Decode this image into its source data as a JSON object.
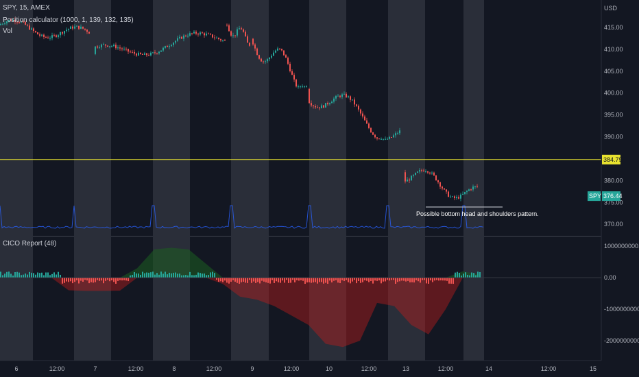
{
  "legend": {
    "symbol": "SPY, 15, AMEX",
    "indicator_1": "Position calculator (1000, 1, 139, 132, 135)",
    "indicator_2": "Vol",
    "indicator_3": "CICO Report (48)"
  },
  "currency": "USD",
  "annotation": "Possible bottom head and shoulders pattern.",
  "colors": {
    "background": "#131722",
    "session_shade": "#2a2e39",
    "up": "#26a69a",
    "down": "#ef5350",
    "hline": "#e8e230",
    "volume": "#2962ff",
    "cico_up": "#1b5e20",
    "cico_down": "#b71c1c"
  },
  "chart_data": [
    {
      "type": "candlestick",
      "title": "SPY, 15, AMEX",
      "ylabel": "USD",
      "ylim": [
        368,
        420
      ],
      "y_ticks": [
        "415.00",
        "410.00",
        "405.00",
        "400.00",
        "395.00",
        "390.00",
        "380.00",
        "375.00",
        "370.00"
      ],
      "horizontal_line": {
        "value": 384.79,
        "label": "384.79"
      },
      "last_price": {
        "symbol": "SPY",
        "value": 376.44,
        "label": "376.44"
      },
      "x_ticks": [
        "6",
        "12:00",
        "7",
        "12:00",
        "8",
        "12:00",
        "9",
        "12:00",
        "10",
        "12:00",
        "13",
        "12:00",
        "14",
        "12:00",
        "15"
      ],
      "sessions": [
        {
          "label": "6",
          "open": 415.5,
          "close": 413.2,
          "high": 416.8,
          "low": 410.5
        },
        {
          "label": "7",
          "open": 408.9,
          "close": 412.8,
          "high": 414.6,
          "low": 407.6
        },
        {
          "label": "8",
          "open": 415.6,
          "close": 412.1,
          "high": 416.5,
          "low": 410.8
        },
        {
          "label": "9",
          "open": 412.4,
          "close": 402.0,
          "high": 413.3,
          "low": 401.5
        },
        {
          "label": "10",
          "open": 400.9,
          "close": 390.0,
          "high": 401.5,
          "low": 389.5
        },
        {
          "label": "13",
          "open": 381.9,
          "close": 376.4,
          "high": 383.2,
          "low": 374.5
        }
      ]
    },
    {
      "type": "area",
      "title": "CICO Report (48)",
      "ylim": [
        -2500000000,
        1200000000
      ],
      "y_ticks": [
        "1000000000.00",
        "0.00",
        "-1000000000.00",
        "-2000000000.00"
      ],
      "series": [
        {
          "values": [
            0,
            0,
            0,
            0,
            -400000000,
            -420000000,
            -420000000,
            -410000000,
            300000000,
            900000000,
            950000000,
            900000000,
            450000000,
            -200000000,
            -600000000,
            -700000000,
            -900000000,
            -1200000000,
            -1500000000,
            -2100000000,
            -2200000000,
            -2000000000,
            -800000000,
            -900000000,
            -1500000000,
            -1800000000,
            -1000000000,
            200000000,
            100000000
          ]
        }
      ]
    }
  ]
}
